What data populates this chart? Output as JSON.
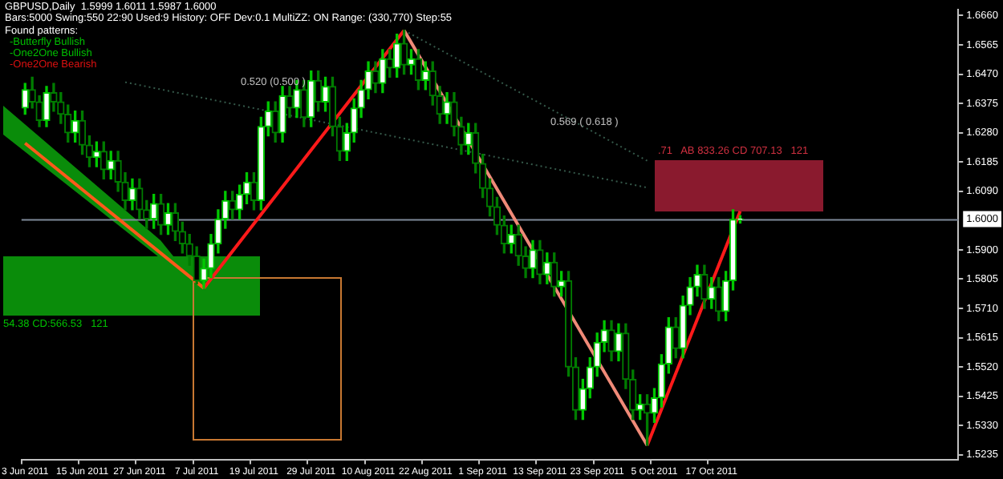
{
  "chart_data": {
    "type": "candlestick",
    "title": "GBPUSD,Daily  1.5999 1.6011 1.5987 1.6000",
    "subtitle": "Bars:5000 Swing:550 22:90 Used:9 History: OFF Dev:0.1 MultiZZ: ON Range: (330,770) Step:55",
    "annotations": [
      "Found patterns:",
      "-Butterfly Bullish",
      "-One2One Bullish",
      "-One2One Bearish",
      "0.520 (0.500 )",
      "0.569 ( 0.618 )",
      ".71   AB 833.26 CD 707.13   121",
      "54.38 CD:566.53   121"
    ],
    "categories": [
      "3 Jun 2011",
      null,
      null,
      null,
      null,
      null,
      null,
      null,
      "15 Jun 2011",
      null,
      null,
      null,
      null,
      null,
      null,
      null,
      "27 Jun 2011",
      null,
      null,
      null,
      null,
      null,
      null,
      null,
      "7 Jul 2011",
      null,
      null,
      null,
      null,
      null,
      null,
      null,
      "19 Jul 2011",
      null,
      null,
      null,
      null,
      null,
      null,
      null,
      "29 Jul 2011",
      null,
      null,
      null,
      null,
      null,
      null,
      null,
      "10 Aug 2011",
      null,
      null,
      null,
      null,
      null,
      null,
      null,
      "22 Aug 2011",
      null,
      null,
      null,
      null,
      null,
      null,
      null,
      "1 Sep 2011",
      null,
      null,
      null,
      null,
      null,
      null,
      null,
      "13 Sep 2011",
      null,
      null,
      null,
      null,
      null,
      null,
      null,
      "23 Sep 2011",
      null,
      null,
      null,
      null,
      null,
      null,
      null,
      "5 Oct 2011",
      null,
      null,
      null,
      null,
      null,
      null,
      null,
      "17 Oct 2011",
      null,
      null,
      null,
      null,
      null,
      null,
      null,
      null,
      null,
      null,
      null,
      null,
      null,
      null,
      null,
      null,
      null,
      null,
      null,
      null,
      null,
      null,
      null,
      null,
      null,
      null,
      null,
      null,
      null,
      null,
      null,
      null,
      null,
      null
    ],
    "ohlc": [
      [
        1.636,
        1.644,
        1.634,
        1.642
      ],
      [
        1.642,
        1.646,
        1.636,
        1.638
      ],
      [
        1.638,
        1.64,
        1.63,
        1.632
      ],
      [
        1.632,
        1.643,
        1.63,
        1.641
      ],
      [
        1.641,
        1.644,
        1.635,
        1.638
      ],
      [
        1.638,
        1.641,
        1.631,
        1.634
      ],
      [
        1.634,
        1.637,
        1.625,
        1.628
      ],
      [
        1.628,
        1.635,
        1.625,
        1.632
      ],
      [
        1.632,
        1.635,
        1.621,
        1.624
      ],
      [
        1.624,
        1.627,
        1.617,
        1.62
      ],
      [
        1.62,
        1.625,
        1.617,
        1.622
      ],
      [
        1.622,
        1.625,
        1.613,
        1.616
      ],
      [
        1.616,
        1.622,
        1.613,
        1.619
      ],
      [
        1.619,
        1.622,
        1.609,
        1.612
      ],
      [
        1.612,
        1.615,
        1.603,
        1.606
      ],
      [
        1.606,
        1.613,
        1.603,
        1.61
      ],
      [
        1.61,
        1.613,
        1.6,
        1.603
      ],
      [
        1.603,
        1.606,
        1.597,
        1.6
      ],
      [
        1.6,
        1.608,
        1.597,
        1.605
      ],
      [
        1.605,
        1.608,
        1.595,
        1.598
      ],
      [
        1.598,
        1.605,
        1.595,
        1.602
      ],
      [
        1.602,
        1.605,
        1.593,
        1.596
      ],
      [
        1.596,
        1.599,
        1.589,
        1.592
      ],
      [
        1.592,
        1.595,
        1.585,
        1.588
      ],
      [
        1.588,
        1.591,
        1.579,
        1.58
      ],
      [
        1.58,
        1.587,
        1.5776,
        1.584
      ],
      [
        1.584,
        1.595,
        1.581,
        1.592
      ],
      [
        1.592,
        1.603,
        1.589,
        1.6
      ],
      [
        1.6,
        1.609,
        1.597,
        1.606
      ],
      [
        1.606,
        1.609,
        1.6,
        1.603
      ],
      [
        1.603,
        1.611,
        1.6,
        1.608
      ],
      [
        1.608,
        1.615,
        1.605,
        1.612
      ],
      [
        1.612,
        1.615,
        1.603,
        1.606
      ],
      [
        1.606,
        1.633,
        1.603,
        1.63
      ],
      [
        1.63,
        1.638,
        1.627,
        1.635
      ],
      [
        1.635,
        1.638,
        1.625,
        1.628
      ],
      [
        1.628,
        1.643,
        1.625,
        1.64
      ],
      [
        1.64,
        1.643,
        1.633,
        1.636
      ],
      [
        1.636,
        1.645,
        1.633,
        1.642
      ],
      [
        1.642,
        1.645,
        1.63,
        1.633
      ],
      [
        1.633,
        1.648,
        1.63,
        1.645
      ],
      [
        1.645,
        1.648,
        1.635,
        1.638
      ],
      [
        1.638,
        1.646,
        1.635,
        1.643
      ],
      [
        1.643,
        1.646,
        1.627,
        1.63
      ],
      [
        1.63,
        1.633,
        1.619,
        1.622
      ],
      [
        1.622,
        1.631,
        1.619,
        1.628
      ],
      [
        1.628,
        1.639,
        1.625,
        1.636
      ],
      [
        1.636,
        1.645,
        1.633,
        1.642
      ],
      [
        1.642,
        1.651,
        1.639,
        1.648
      ],
      [
        1.648,
        1.651,
        1.641,
        1.644
      ],
      [
        1.644,
        1.655,
        1.641,
        1.652
      ],
      [
        1.652,
        1.655,
        1.646,
        1.649
      ],
      [
        1.649,
        1.66,
        1.646,
        1.657
      ],
      [
        1.657,
        1.6612,
        1.647,
        1.65
      ],
      [
        1.65,
        1.655,
        1.647,
        1.652
      ],
      [
        1.652,
        1.655,
        1.642,
        1.645
      ],
      [
        1.645,
        1.651,
        1.642,
        1.648
      ],
      [
        1.648,
        1.651,
        1.637,
        1.64
      ],
      [
        1.64,
        1.643,
        1.631,
        1.634
      ],
      [
        1.634,
        1.641,
        1.631,
        1.638
      ],
      [
        1.638,
        1.641,
        1.627,
        1.63
      ],
      [
        1.63,
        1.633,
        1.621,
        1.624
      ],
      [
        1.624,
        1.631,
        1.621,
        1.628
      ],
      [
        1.628,
        1.631,
        1.615,
        1.618
      ],
      [
        1.618,
        1.621,
        1.607,
        1.61
      ],
      [
        1.61,
        1.613,
        1.601,
        1.604
      ],
      [
        1.604,
        1.607,
        1.595,
        1.598
      ],
      [
        1.598,
        1.601,
        1.589,
        1.592
      ],
      [
        1.592,
        1.598,
        1.589,
        1.595
      ],
      [
        1.595,
        1.598,
        1.585,
        1.588
      ],
      [
        1.588,
        1.591,
        1.581,
        1.584
      ],
      [
        1.584,
        1.593,
        1.581,
        1.59
      ],
      [
        1.59,
        1.593,
        1.579,
        1.582
      ],
      [
        1.582,
        1.589,
        1.579,
        1.586
      ],
      [
        1.586,
        1.589,
        1.575,
        1.578
      ],
      [
        1.578,
        1.583,
        1.575,
        1.58
      ],
      [
        1.58,
        1.583,
        1.549,
        1.552
      ],
      [
        1.552,
        1.555,
        1.535,
        1.538
      ],
      [
        1.538,
        1.548,
        1.535,
        1.545
      ],
      [
        1.545,
        1.555,
        1.542,
        1.552
      ],
      [
        1.552,
        1.563,
        1.549,
        1.56
      ],
      [
        1.56,
        1.567,
        1.557,
        1.564
      ],
      [
        1.564,
        1.567,
        1.554,
        1.557
      ],
      [
        1.557,
        1.566,
        1.554,
        1.563
      ],
      [
        1.563,
        1.566,
        1.545,
        1.548
      ],
      [
        1.548,
        1.551,
        1.535,
        1.538
      ],
      [
        1.538,
        1.543,
        1.535,
        1.54
      ],
      [
        1.54,
        1.543,
        1.5266,
        1.537
      ],
      [
        1.537,
        1.545,
        1.534,
        1.542
      ],
      [
        1.542,
        1.556,
        1.539,
        1.553
      ],
      [
        1.553,
        1.568,
        1.55,
        1.565
      ],
      [
        1.565,
        1.568,
        1.555,
        1.558
      ],
      [
        1.558,
        1.575,
        1.555,
        1.572
      ],
      [
        1.572,
        1.581,
        1.569,
        1.578
      ],
      [
        1.578,
        1.585,
        1.575,
        1.582
      ],
      [
        1.582,
        1.585,
        1.571,
        1.574
      ],
      [
        1.574,
        1.581,
        1.571,
        1.578
      ],
      [
        1.578,
        1.581,
        1.567,
        1.57
      ],
      [
        1.57,
        1.583,
        1.567,
        1.58
      ],
      [
        1.58,
        1.603,
        1.577,
        1.5999
      ],
      [
        1.5999,
        1.6011,
        1.5987,
        1.6
      ],
      null,
      null,
      null,
      null,
      null,
      null,
      null,
      null,
      null,
      null,
      null,
      null,
      null,
      null,
      null,
      null,
      null,
      null,
      null,
      null,
      null,
      null,
      null,
      null,
      null,
      null,
      null,
      null,
      null,
      null
    ],
    "series": [
      {
        "type": "line",
        "color": "#ff5a1a",
        "values": [
          1.6246,
          null,
          null,
          null,
          null,
          null,
          null,
          null,
          null,
          null,
          null,
          null,
          null,
          null,
          null,
          null,
          null,
          null,
          null,
          null,
          null,
          null,
          null,
          null,
          null,
          1.5776,
          null,
          null,
          null,
          null,
          null,
          null,
          null,
          null,
          null,
          null,
          null,
          null,
          null,
          null,
          null,
          null,
          null,
          null,
          null,
          null,
          null,
          null,
          null,
          null,
          null,
          null,
          null,
          null,
          null,
          null,
          null,
          null,
          null,
          null,
          null,
          null,
          null,
          null,
          null,
          null,
          null,
          null,
          null,
          null,
          null,
          null,
          null,
          null,
          null,
          null,
          null,
          null,
          null,
          null,
          null,
          null,
          null,
          null,
          null,
          null,
          null,
          null,
          null,
          null,
          null,
          null,
          null,
          null,
          null,
          null,
          null,
          null,
          null,
          null,
          null,
          null,
          null,
          null,
          null,
          null,
          null,
          null,
          null,
          null,
          null,
          null,
          null,
          null,
          null,
          null,
          null,
          null,
          null,
          null,
          null,
          null,
          null,
          null,
          null,
          null,
          null,
          null,
          null,
          null,
          null
        ]
      },
      {
        "type": "line",
        "color": "#ff1a1a",
        "values": [
          null,
          null,
          null,
          null,
          null,
          null,
          null,
          null,
          null,
          null,
          null,
          null,
          null,
          null,
          null,
          null,
          null,
          null,
          null,
          null,
          null,
          null,
          null,
          null,
          null,
          1.5776,
          null,
          null,
          null,
          null,
          null,
          null,
          null,
          null,
          null,
          null,
          null,
          null,
          null,
          null,
          null,
          null,
          null,
          null,
          null,
          null,
          null,
          null,
          null,
          null,
          null,
          null,
          null,
          1.6612,
          null,
          null,
          null,
          null,
          null,
          null,
          null,
          null,
          null,
          null,
          null,
          null,
          null,
          null,
          null,
          null,
          null,
          null,
          null,
          null,
          null,
          null,
          null,
          null,
          null,
          null,
          null,
          null,
          null,
          null,
          null,
          null,
          null,
          null,
          null,
          null,
          null,
          null,
          null,
          null,
          null,
          null,
          null,
          null,
          null,
          null,
          null,
          null,
          null,
          null,
          null,
          null,
          null,
          null,
          null,
          null,
          null,
          null,
          null,
          null,
          null,
          null,
          null,
          null,
          null,
          null,
          null,
          null,
          null,
          null,
          null,
          null,
          null,
          null,
          null,
          null,
          null
        ]
      },
      {
        "type": "line",
        "color": "#f08a78",
        "values": [
          null,
          null,
          null,
          null,
          null,
          null,
          null,
          null,
          null,
          null,
          null,
          null,
          null,
          null,
          null,
          null,
          null,
          null,
          null,
          null,
          null,
          null,
          null,
          null,
          null,
          null,
          null,
          null,
          null,
          null,
          null,
          null,
          null,
          null,
          null,
          null,
          null,
          null,
          null,
          null,
          null,
          null,
          null,
          null,
          null,
          null,
          null,
          null,
          null,
          null,
          null,
          null,
          null,
          1.6612,
          null,
          null,
          null,
          null,
          null,
          null,
          null,
          null,
          null,
          null,
          null,
          null,
          null,
          null,
          null,
          null,
          null,
          null,
          null,
          null,
          null,
          null,
          null,
          null,
          null,
          null,
          null,
          null,
          null,
          null,
          null,
          null,
          null,
          1.5266,
          null,
          null,
          null,
          null,
          null,
          null,
          null,
          null,
          null,
          null,
          null,
          null,
          null,
          null,
          null,
          null,
          null,
          null,
          null,
          null,
          null,
          null,
          null,
          null,
          null,
          null,
          null,
          null,
          null,
          null,
          null,
          null,
          null,
          null,
          null,
          null,
          null,
          null,
          null,
          null,
          null,
          null,
          null
        ]
      },
      {
        "type": "line",
        "color": "#ff1a1a",
        "values": [
          null,
          null,
          null,
          null,
          null,
          null,
          null,
          null,
          null,
          null,
          null,
          null,
          null,
          null,
          null,
          null,
          null,
          null,
          null,
          null,
          null,
          null,
          null,
          null,
          null,
          null,
          null,
          null,
          null,
          null,
          null,
          null,
          null,
          null,
          null,
          null,
          null,
          null,
          null,
          null,
          null,
          null,
          null,
          null,
          null,
          null,
          null,
          null,
          null,
          null,
          null,
          null,
          null,
          null,
          null,
          null,
          null,
          null,
          null,
          null,
          null,
          null,
          null,
          null,
          null,
          null,
          null,
          null,
          null,
          null,
          null,
          null,
          null,
          null,
          null,
          null,
          null,
          null,
          null,
          null,
          null,
          null,
          null,
          null,
          null,
          null,
          null,
          1.5266,
          null,
          null,
          null,
          null,
          null,
          null,
          null,
          null,
          null,
          null,
          null,
          null,
          1.6025,
          null,
          null,
          null,
          null,
          null,
          null,
          null,
          null,
          null,
          null,
          null,
          null,
          null,
          null,
          null,
          null,
          null,
          null,
          null,
          null,
          null,
          null,
          null,
          null,
          null,
          null,
          null,
          null,
          null,
          null
        ]
      },
      {
        "type": "line",
        "color": "#35594a",
        "line_style": "dotted",
        "values": [
          null,
          null,
          null,
          null,
          null,
          null,
          null,
          null,
          null,
          null,
          null,
          null,
          null,
          null,
          null,
          null,
          null,
          null,
          null,
          null,
          null,
          null,
          null,
          null,
          null,
          null,
          null,
          null,
          null,
          null,
          null,
          null,
          null,
          null,
          null,
          null,
          null,
          null,
          null,
          null,
          null,
          null,
          null,
          null,
          null,
          null,
          null,
          null,
          null,
          null,
          null,
          null,
          null,
          1.6612,
          null,
          null,
          null,
          null,
          null,
          null,
          null,
          null,
          null,
          null,
          null,
          null,
          null,
          null,
          null,
          null,
          null,
          null,
          null,
          null,
          null,
          null,
          null,
          null,
          null,
          null,
          null,
          null,
          null,
          null,
          null,
          null,
          null,
          1.6189,
          null,
          null,
          null,
          null,
          null,
          null,
          null,
          null,
          null,
          null,
          null,
          null,
          null,
          null,
          null,
          null,
          null,
          null,
          null,
          null,
          null,
          null,
          null,
          null,
          null,
          null,
          null,
          null,
          null,
          null,
          null,
          null,
          null,
          null,
          null,
          null,
          null,
          null,
          null,
          null,
          null,
          null,
          null
        ]
      },
      {
        "type": "line",
        "color": "#35594a",
        "line_style": "dotted",
        "values": [
          null,
          null,
          null,
          null,
          null,
          null,
          null,
          null,
          null,
          null,
          null,
          null,
          null,
          null,
          1.6444,
          null,
          null,
          null,
          null,
          null,
          null,
          null,
          null,
          null,
          null,
          null,
          null,
          null,
          null,
          null,
          null,
          null,
          null,
          null,
          null,
          null,
          null,
          null,
          null,
          null,
          null,
          null,
          null,
          null,
          null,
          null,
          null,
          null,
          null,
          null,
          null,
          null,
          null,
          null,
          null,
          null,
          null,
          null,
          null,
          null,
          null,
          null,
          null,
          null,
          null,
          null,
          null,
          null,
          null,
          null,
          null,
          null,
          null,
          null,
          null,
          null,
          null,
          null,
          null,
          null,
          null,
          null,
          null,
          null,
          null,
          null,
          null,
          1.6102,
          null,
          null,
          null,
          null,
          null,
          null,
          null,
          null,
          null,
          null,
          null,
          null,
          null,
          null,
          null,
          null,
          null,
          null,
          null,
          null,
          null,
          null,
          null,
          null,
          null,
          null,
          null,
          null,
          null,
          null,
          null,
          null,
          null,
          null,
          null,
          null,
          null,
          null,
          null,
          null,
          null,
          null,
          null
        ]
      }
    ],
    "ylim": [
      1.522,
      1.668
    ],
    "yticks": [
      {
        "value": 1.666,
        "label": "1.6660"
      },
      {
        "value": 1.6565,
        "label": "1.6565"
      },
      {
        "value": 1.647,
        "label": "1.6470"
      },
      {
        "value": 1.6375,
        "label": "1.6375"
      },
      {
        "value": 1.628,
        "label": "1.6280"
      },
      {
        "value": 1.6185,
        "label": "1.6185"
      },
      {
        "value": 1.609,
        "label": "1.6090"
      },
      {
        "value": 1.59,
        "label": "1.5900"
      },
      {
        "value": 1.5805,
        "label": "1.5805"
      },
      {
        "value": 1.571,
        "label": "1.5710"
      },
      {
        "value": 1.5615,
        "label": "1.5615"
      },
      {
        "value": 1.552,
        "label": "1.5520"
      },
      {
        "value": 1.5425,
        "label": "1.5425"
      },
      {
        "value": 1.533,
        "label": "1.5330"
      },
      {
        "value": 1.5235,
        "label": "1.5235"
      }
    ],
    "ref_lines": [
      {
        "axis": "y",
        "value": 1.6,
        "label": "1.6000",
        "color": "#7f8a99"
      }
    ],
    "legend": false
  }
}
